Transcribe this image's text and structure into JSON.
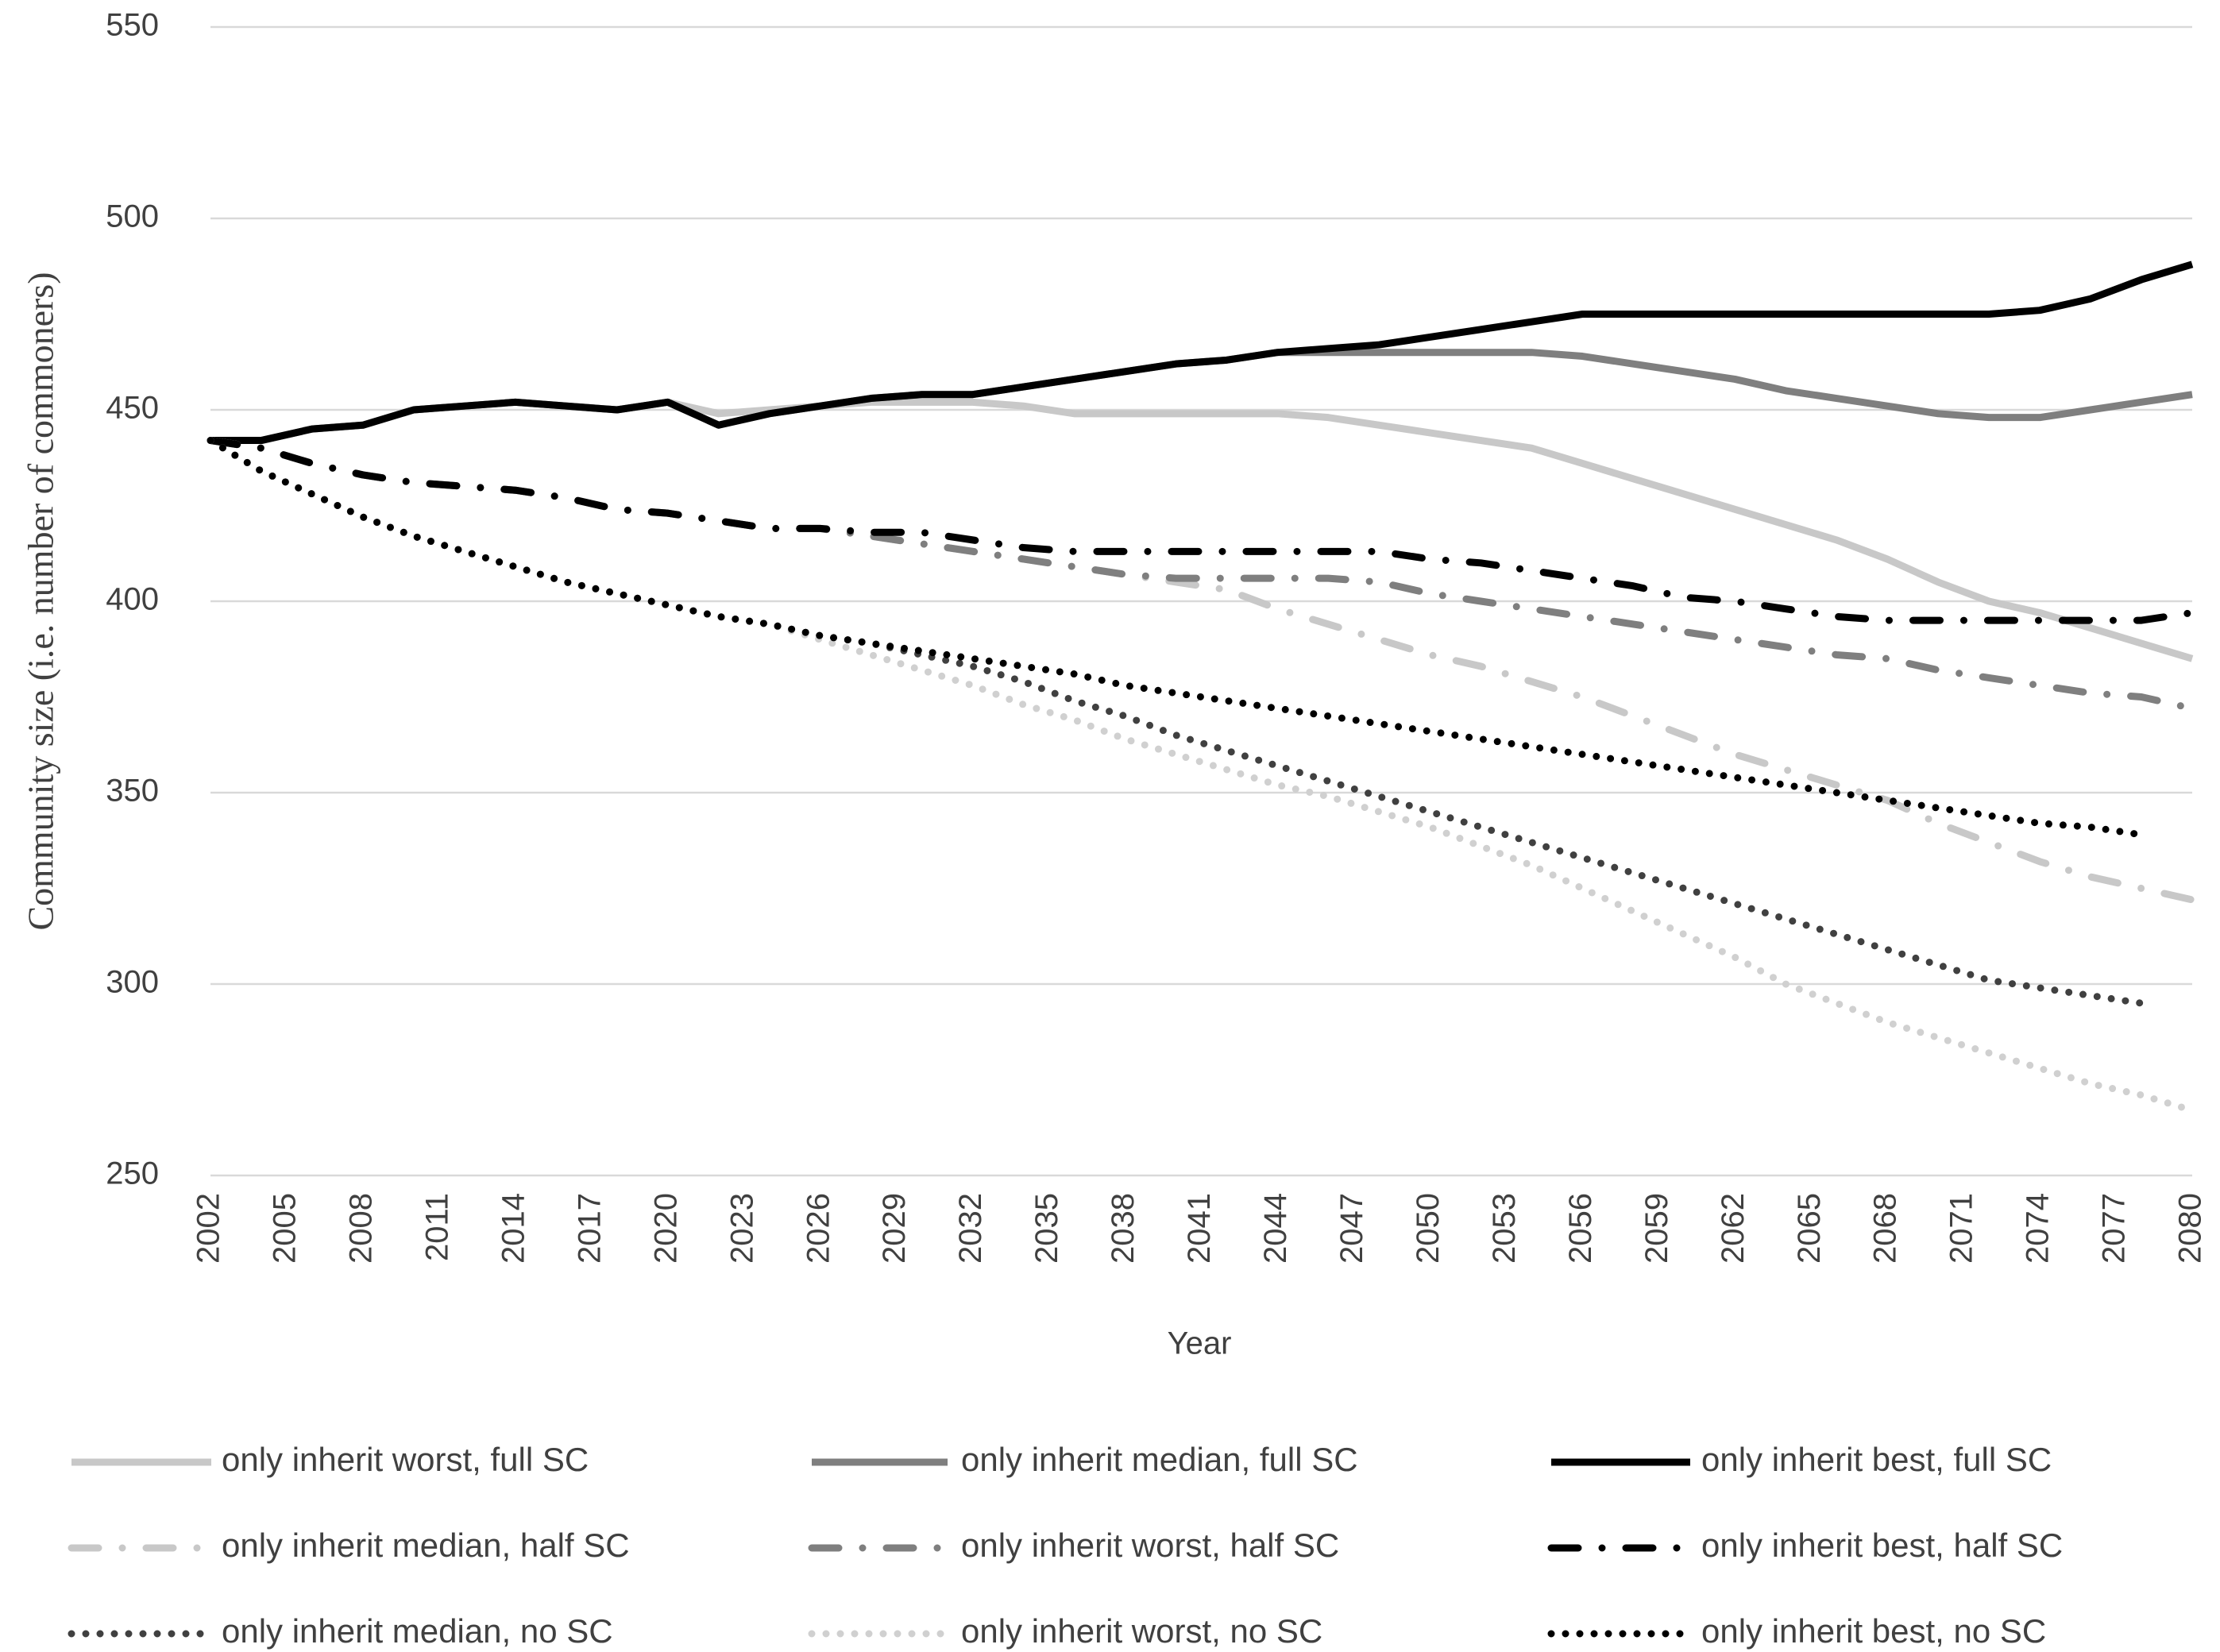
{
  "chart_data": {
    "type": "line",
    "x_label": "Year",
    "y_label": "Community size (i.e. number of commoners)",
    "x": [
      2002,
      2004,
      2006,
      2008,
      2010,
      2012,
      2014,
      2016,
      2018,
      2020,
      2022,
      2024,
      2026,
      2028,
      2030,
      2032,
      2034,
      2036,
      2038,
      2040,
      2042,
      2044,
      2046,
      2048,
      2050,
      2052,
      2054,
      2056,
      2058,
      2060,
      2062,
      2064,
      2066,
      2068,
      2070,
      2072,
      2074,
      2076,
      2078,
      2080
    ],
    "xlim": [
      2002,
      2080
    ],
    "xticks": [
      2002,
      2005,
      2008,
      2011,
      2014,
      2017,
      2020,
      2023,
      2026,
      2029,
      2032,
      2035,
      2038,
      2041,
      2044,
      2047,
      2050,
      2053,
      2056,
      2059,
      2062,
      2065,
      2068,
      2071,
      2074,
      2077,
      2080
    ],
    "ylim": [
      250,
      550
    ],
    "yticks": [
      250,
      300,
      350,
      400,
      450,
      500,
      550
    ],
    "grid": true,
    "legend": "bottom",
    "series": [
      {
        "name": "only inherit worst, full SC",
        "color": "#c8c8c8",
        "style": "solid",
        "values": [
          442,
          442,
          445,
          446,
          450,
          451,
          452,
          451,
          450,
          452,
          449,
          450,
          451,
          452,
          452,
          452,
          451,
          449,
          449,
          449,
          449,
          449,
          448,
          446,
          444,
          442,
          440,
          436,
          432,
          428,
          424,
          420,
          416,
          411,
          405,
          400,
          397,
          393,
          389,
          385
        ]
      },
      {
        "name": "only inherit median, full SC",
        "color": "#7f7f7f",
        "style": "solid",
        "values": [
          442,
          442,
          445,
          446,
          450,
          451,
          452,
          451,
          450,
          452,
          446,
          449,
          451,
          453,
          454,
          454,
          456,
          458,
          460,
          462,
          463,
          465,
          465,
          465,
          465,
          465,
          465,
          464,
          462,
          460,
          458,
          455,
          453,
          451,
          449,
          448,
          448,
          450,
          452,
          454
        ]
      },
      {
        "name": "only inherit best, full SC",
        "color": "#000000",
        "style": "solid",
        "values": [
          442,
          442,
          445,
          446,
          450,
          451,
          452,
          451,
          450,
          452,
          446,
          449,
          451,
          453,
          454,
          454,
          456,
          458,
          460,
          462,
          463,
          465,
          466,
          467,
          469,
          471,
          473,
          475,
          475,
          475,
          475,
          475,
          475,
          475,
          475,
          475,
          476,
          479,
          484,
          488
        ]
      },
      {
        "name": "only inherit median, half SC",
        "color": "#c8c8c8",
        "style": "dashdot",
        "values": [
          442,
          440,
          436,
          433,
          431,
          430,
          429,
          427,
          424,
          423,
          421,
          419,
          419,
          417,
          415,
          413,
          411,
          409,
          407,
          405,
          403,
          398,
          394,
          390,
          386,
          383,
          379,
          375,
          370,
          365,
          360,
          356,
          352,
          348,
          342,
          337,
          332,
          328,
          325,
          322
        ]
      },
      {
        "name": "only inherit worst, half SC",
        "color": "#7f7f7f",
        "style": "dashdot",
        "values": [
          442,
          440,
          436,
          433,
          431,
          430,
          429,
          427,
          424,
          423,
          421,
          419,
          419,
          417,
          415,
          413,
          411,
          409,
          407,
          406,
          406,
          406,
          406,
          405,
          402,
          400,
          398,
          396,
          394,
          392,
          390,
          388,
          386,
          385,
          382,
          380,
          378,
          376,
          375,
          372
        ]
      },
      {
        "name": "only inherit best, half SC",
        "color": "#000000",
        "style": "dashdot",
        "values": [
          442,
          440,
          436,
          433,
          431,
          430,
          429,
          427,
          424,
          423,
          421,
          419,
          419,
          418,
          418,
          416,
          414,
          413,
          413,
          413,
          413,
          413,
          413,
          413,
          411,
          410,
          408,
          406,
          404,
          401,
          400,
          398,
          396,
          395,
          395,
          395,
          395,
          395,
          395,
          397
        ]
      },
      {
        "name": "only inherit median, no SC",
        "color": "#404040",
        "style": "dot",
        "values": [
          442,
          434,
          428,
          422,
          417,
          413,
          409,
          405,
          402,
          399,
          396,
          394,
          391,
          389,
          386,
          383,
          379,
          374,
          370,
          365,
          361,
          357,
          353,
          349,
          345,
          341,
          337,
          333,
          329,
          325,
          321,
          317,
          313,
          309,
          305,
          301,
          299,
          297,
          295,
          null
        ]
      },
      {
        "name": "only inherit worst, no SC",
        "color": "#d0d0d0",
        "style": "dot",
        "values": [
          442,
          434,
          428,
          422,
          417,
          413,
          409,
          405,
          402,
          399,
          396,
          394,
          390,
          386,
          382,
          378,
          373,
          369,
          364,
          360,
          356,
          352,
          349,
          345,
          341,
          336,
          331,
          325,
          319,
          313,
          307,
          300,
          295,
          290,
          286,
          282,
          278,
          274,
          271,
          267
        ]
      },
      {
        "name": "only inherit best, no SC",
        "color": "#000000",
        "style": "dot",
        "values": [
          442,
          434,
          428,
          422,
          417,
          413,
          409,
          405,
          402,
          399,
          396,
          394,
          391,
          389,
          387,
          385,
          383,
          381,
          378,
          376,
          374,
          372,
          370,
          368,
          366,
          364,
          362,
          360,
          358,
          356,
          354,
          352,
          350,
          348,
          346,
          344,
          342,
          341,
          339,
          null
        ]
      }
    ]
  }
}
